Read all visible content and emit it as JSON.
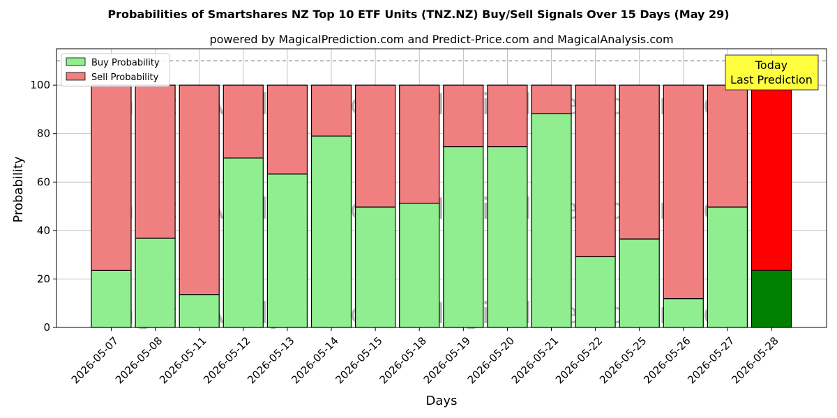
{
  "chart_data": {
    "type": "bar",
    "stacked": true,
    "title": "Probabilities of Smartshares NZ Top 10 ETF Units (TNZ.NZ) Buy/Sell Signals Over 15 Days (May 29)",
    "subtitle": "powered by MagicalPrediction.com and Predict-Price.com and MagicalAnalysis.com",
    "xlabel": "Days",
    "ylabel": "Probability",
    "ylim": [
      0,
      115
    ],
    "yticks": [
      0,
      20,
      40,
      60,
      80,
      100
    ],
    "grid": true,
    "reference_line": 110,
    "legend_position": "top-left",
    "categories": [
      "2026-05-07",
      "2026-05-08",
      "2026-05-11",
      "2026-05-12",
      "2026-05-13",
      "2026-05-14",
      "2026-05-15",
      "2026-05-18",
      "2026-05-19",
      "2026-05-20",
      "2026-05-21",
      "2026-05-22",
      "2026-05-25",
      "2026-05-26",
      "2026-05-27",
      "2026-05-28"
    ],
    "series": [
      {
        "name": "Buy Probability",
        "color": "#90ee90",
        "highlight_color": "#008000",
        "values": [
          23.5,
          36.8,
          13.6,
          69.9,
          63.3,
          79.0,
          49.7,
          51.2,
          74.6,
          74.6,
          88.2,
          29.2,
          36.5,
          11.9,
          49.7,
          23.5
        ]
      },
      {
        "name": "Sell Probability",
        "color": "#f08080",
        "highlight_color": "#ff0000",
        "values": [
          76.5,
          63.2,
          86.4,
          30.1,
          36.7,
          21.0,
          50.3,
          48.8,
          25.4,
          25.4,
          11.8,
          70.8,
          63.5,
          88.1,
          50.3,
          76.5
        ]
      }
    ],
    "highlight_index": 15,
    "annotation": {
      "line1": "Today",
      "line2": "Last Prediction",
      "bg": "#ffff40"
    },
    "watermarks": [
      "MagicalAnalysis.com",
      "MagicalPrediction.com"
    ]
  }
}
